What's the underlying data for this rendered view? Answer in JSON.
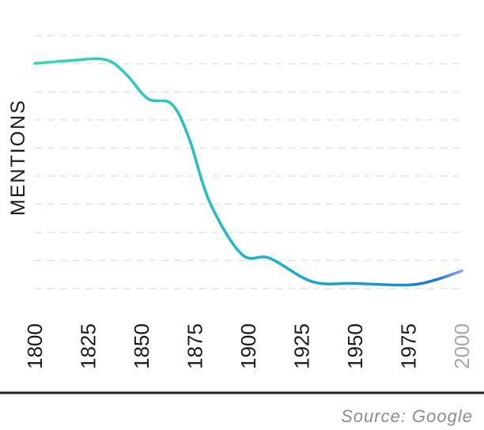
{
  "chart_data": {
    "type": "line",
    "ylabel": "MENTIONS",
    "xlabel": "",
    "source": "Source: Google",
    "x_ticks": [
      "1800",
      "1825",
      "1850",
      "1875",
      "1900",
      "1925",
      "1950",
      "1975",
      "2000"
    ],
    "faded_ticks": [
      "2000"
    ],
    "xlim": [
      1800,
      2000
    ],
    "ylim": [
      0,
      10
    ],
    "y_axis_labels": "none",
    "grid": "horizontal-dashed",
    "colors": {
      "line_start": "#2ee0b0",
      "line_mid": "#18b4c8",
      "line_end": "#1a6fe8",
      "grid": "#e3e3e3",
      "axis": "#222222",
      "source_text": "#8c8c8c"
    },
    "series": [
      {
        "values": [
          {
            "x": 1800,
            "y": 8.9
          },
          {
            "x": 1815,
            "y": 9.0
          },
          {
            "x": 1833,
            "y": 9.05
          },
          {
            "x": 1843,
            "y": 8.45
          },
          {
            "x": 1853,
            "y": 7.5
          },
          {
            "x": 1864,
            "y": 7.3
          },
          {
            "x": 1872,
            "y": 6.0
          },
          {
            "x": 1882,
            "y": 3.4
          },
          {
            "x": 1897,
            "y": 1.35
          },
          {
            "x": 1910,
            "y": 1.2
          },
          {
            "x": 1930,
            "y": 0.27
          },
          {
            "x": 1950,
            "y": 0.2
          },
          {
            "x": 1975,
            "y": 0.14
          },
          {
            "x": 1988,
            "y": 0.35
          },
          {
            "x": 2000,
            "y": 0.7
          }
        ]
      }
    ]
  }
}
